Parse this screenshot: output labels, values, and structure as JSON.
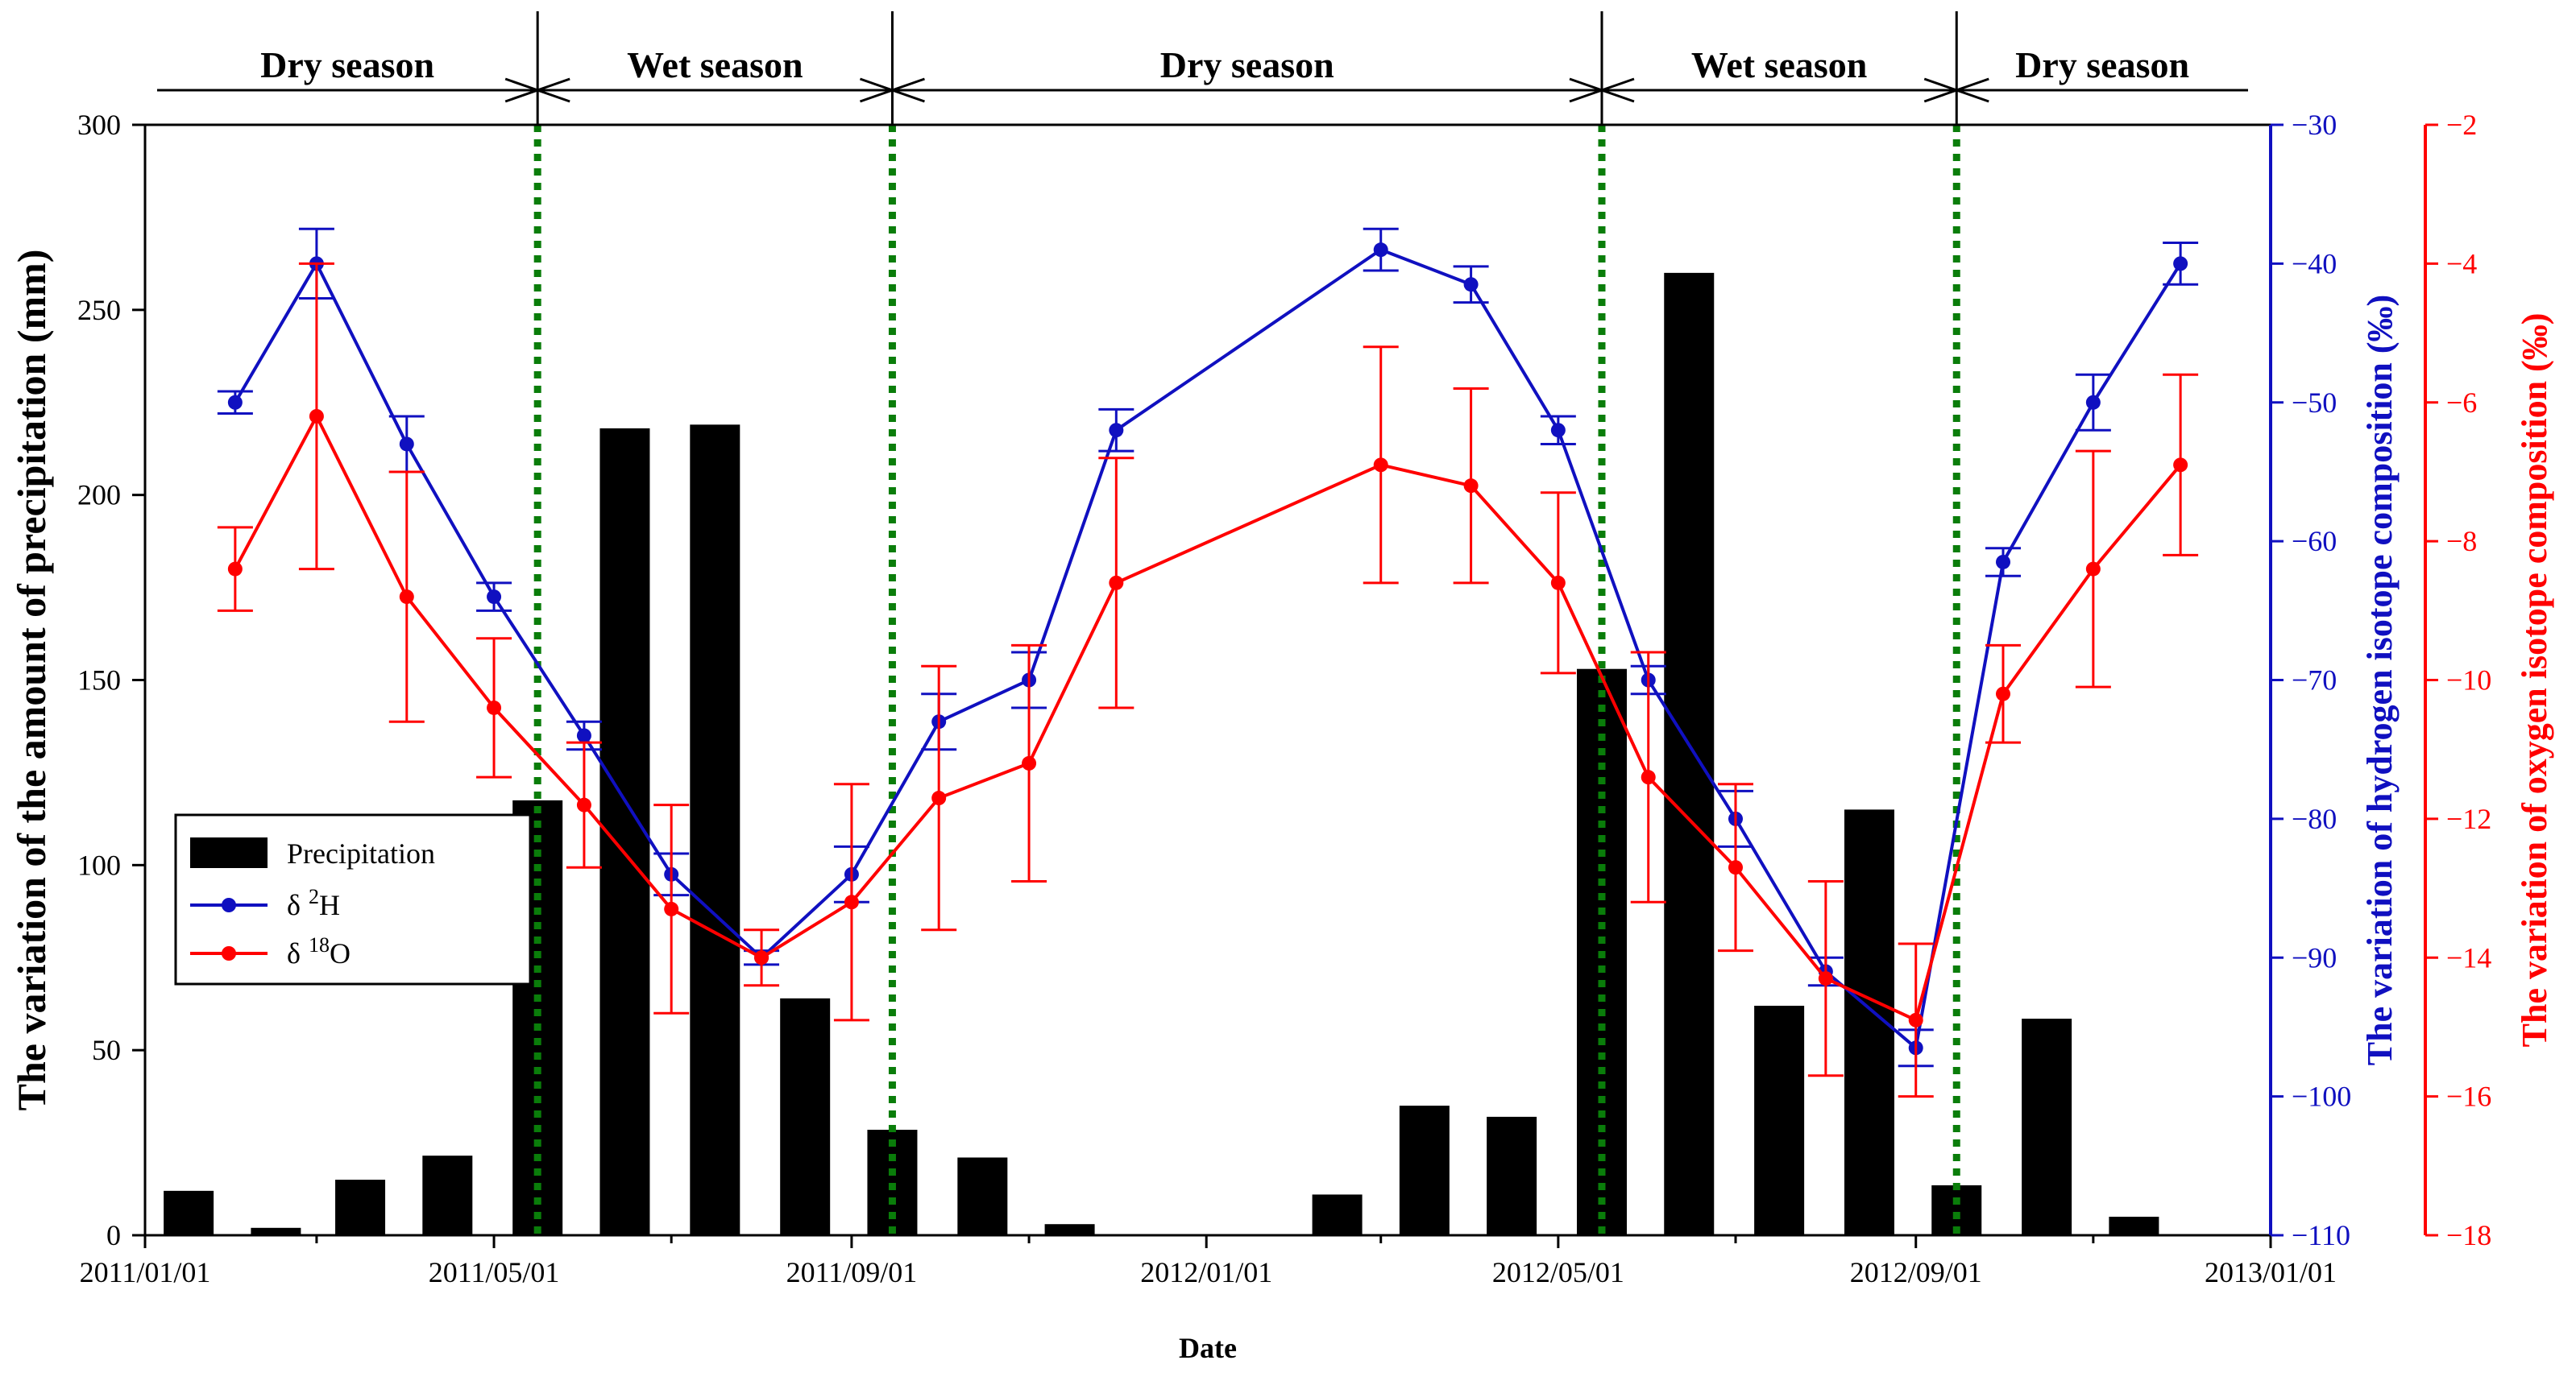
{
  "chart_data": {
    "type": "bar+line",
    "seasons": [
      {
        "label": "Dry season",
        "start": "2011-01-01",
        "end": "2011-05-16",
        "arrow_left": false,
        "arrow_right": true
      },
      {
        "label": "Wet season",
        "start": "2011-05-16",
        "end": "2011-09-15",
        "arrow_left": true,
        "arrow_right": true
      },
      {
        "label": "Dry season",
        "start": "2011-09-15",
        "end": "2012-05-16",
        "arrow_left": true,
        "arrow_right": true
      },
      {
        "label": "Wet season",
        "start": "2012-05-16",
        "end": "2012-09-15",
        "arrow_left": true,
        "arrow_right": true
      },
      {
        "label": "Dry season",
        "start": "2012-09-15",
        "end": "2013-01-01",
        "arrow_left": true,
        "arrow_right": false
      }
    ],
    "season_boundaries": [
      "2011-05-16",
      "2011-09-15",
      "2012-05-16",
      "2012-09-15"
    ],
    "x_axis": {
      "title": "Date",
      "range": [
        "2011-01-01",
        "2013-01-01"
      ],
      "tick_labels": [
        "2011/01/01",
        "2011/05/01",
        "2011/09/01",
        "2012/01/01",
        "2012/05/01",
        "2012/09/01",
        "2013/01/01"
      ],
      "tick_dates": [
        "2011-01-01",
        "2011-05-01",
        "2011-09-01",
        "2012-01-01",
        "2012-05-01",
        "2012-09-01",
        "2013-01-01"
      ],
      "minor_tick_dates": [
        "2011-03-01",
        "2011-07-01",
        "2011-11-01",
        "2012-03-01",
        "2012-07-01",
        "2012-11-01"
      ]
    },
    "y_left": {
      "title": "The variation of the amount of precipitation (mm)",
      "range": [
        0,
        300
      ],
      "ticks": [
        0,
        50,
        100,
        150,
        200,
        250,
        300
      ],
      "color": "#000000"
    },
    "y_right_h": {
      "title": "The variation of hydrogen isotope composition (‰)",
      "range": [
        -110,
        -30
      ],
      "ticks": [
        -110,
        -100,
        -90,
        -80,
        -70,
        -60,
        -50,
        -40,
        -30
      ],
      "color": "#1010c0"
    },
    "y_right_o": {
      "title": "The variation of oxygen isotope composition (‰)",
      "range": [
        -18,
        -2
      ],
      "ticks": [
        -18,
        -16,
        -14,
        -12,
        -10,
        -8,
        -6,
        -4,
        -2
      ],
      "color": "#ff0000"
    },
    "legend": {
      "position": "center-left",
      "items": [
        {
          "label": "Precipitation",
          "kind": "bar"
        },
        {
          "label": "δ",
          "superscript": "2",
          "suffix": "H",
          "kind": "line",
          "color": "#1010c0"
        },
        {
          "label": "δ",
          "superscript": "18",
          "suffix": "O",
          "kind": "line",
          "color": "#ff0000"
        }
      ]
    },
    "precipitation": {
      "name": "Precipitation",
      "color": "#000000",
      "dates": [
        "2011-01-16",
        "2011-02-15",
        "2011-03-16",
        "2011-04-15",
        "2011-05-16",
        "2011-06-15",
        "2011-07-16",
        "2011-08-16",
        "2011-09-15",
        "2011-10-16",
        "2011-11-15",
        "2011-12-16",
        "2012-01-16",
        "2012-02-15",
        "2012-03-16",
        "2012-04-15",
        "2012-05-16",
        "2012-06-15",
        "2012-07-16",
        "2012-08-16",
        "2012-09-15",
        "2012-10-16",
        "2012-11-15",
        "2012-12-16"
      ],
      "values": [
        12,
        2,
        15,
        21.5,
        117.5,
        218,
        219,
        64,
        28.5,
        21,
        3,
        0,
        0,
        11,
        35,
        32,
        153,
        260,
        62,
        115,
        13.5,
        58.5,
        5,
        0
      ]
    },
    "delta_2H": {
      "name": "δ2H",
      "color": "#1010c0",
      "points": [
        {
          "date": "2011-02-01",
          "value": -50,
          "err": 0.8
        },
        {
          "date": "2011-03-01",
          "value": -40,
          "err": 2.5
        },
        {
          "date": "2011-04-01",
          "value": -53,
          "err": 2.0
        },
        {
          "date": "2011-05-01",
          "value": -64,
          "err": 1.0
        },
        {
          "date": "2011-06-01",
          "value": -74,
          "err": 1.0
        },
        {
          "date": "2011-07-01",
          "value": -84,
          "err": 1.5
        },
        {
          "date": "2011-08-01",
          "value": -90,
          "err": 0.5
        },
        {
          "date": "2011-09-01",
          "value": -84,
          "err": 2.0
        },
        {
          "date": "2011-10-01",
          "value": -73,
          "err": 2.0
        },
        {
          "date": "2011-11-01",
          "value": -70,
          "err": 2.0
        },
        {
          "date": "2011-12-01",
          "value": -52,
          "err": 1.5
        },
        {
          "date": "2012-03-01",
          "value": -39,
          "err": 1.5
        },
        {
          "date": "2012-04-01",
          "value": -41.5,
          "err": 1.3
        },
        {
          "date": "2012-05-01",
          "value": -52,
          "err": 1.0
        },
        {
          "date": "2012-06-01",
          "value": -70,
          "err": 1.0
        },
        {
          "date": "2012-07-01",
          "value": -80,
          "err": 2.0
        },
        {
          "date": "2012-08-01",
          "value": -91,
          "err": 1.0
        },
        {
          "date": "2012-09-01",
          "value": -96.5,
          "err": 1.3
        },
        {
          "date": "2012-10-01",
          "value": -61.5,
          "err": 1.0
        },
        {
          "date": "2012-11-01",
          "value": -50,
          "err": 2.0
        },
        {
          "date": "2012-12-01",
          "value": -40,
          "err": 1.5
        }
      ]
    },
    "delta_18O": {
      "name": "δ18O",
      "color": "#ff0000",
      "points": [
        {
          "date": "2011-02-01",
          "value": -8.4,
          "err": 0.6
        },
        {
          "date": "2011-03-01",
          "value": -6.2,
          "err": 2.2
        },
        {
          "date": "2011-04-01",
          "value": -8.8,
          "err": 1.8
        },
        {
          "date": "2011-05-01",
          "value": -10.4,
          "err": 1.0
        },
        {
          "date": "2011-06-01",
          "value": -11.8,
          "err": 0.9
        },
        {
          "date": "2011-07-01",
          "value": -13.3,
          "err": 1.5
        },
        {
          "date": "2011-08-01",
          "value": -14.0,
          "err": 0.4
        },
        {
          "date": "2011-09-01",
          "value": -13.2,
          "err": 1.7
        },
        {
          "date": "2011-10-01",
          "value": -11.7,
          "err": 1.9
        },
        {
          "date": "2011-11-01",
          "value": -11.2,
          "err": 1.7
        },
        {
          "date": "2011-12-01",
          "value": -8.6,
          "err": 1.8
        },
        {
          "date": "2012-03-01",
          "value": -6.9,
          "err": 1.7
        },
        {
          "date": "2012-04-01",
          "value": -7.2,
          "err": 1.4
        },
        {
          "date": "2012-05-01",
          "value": -8.6,
          "err": 1.3
        },
        {
          "date": "2012-06-01",
          "value": -11.4,
          "err": 1.8
        },
        {
          "date": "2012-07-01",
          "value": -12.7,
          "err": 1.2
        },
        {
          "date": "2012-08-01",
          "value": -14.3,
          "err": 1.4
        },
        {
          "date": "2012-09-01",
          "value": -14.9,
          "err": 1.1
        },
        {
          "date": "2012-10-01",
          "value": -10.2,
          "err": 0.7
        },
        {
          "date": "2012-11-01",
          "value": -8.4,
          "err": 1.7
        },
        {
          "date": "2012-12-01",
          "value": -6.9,
          "err": 1.3
        }
      ]
    }
  }
}
